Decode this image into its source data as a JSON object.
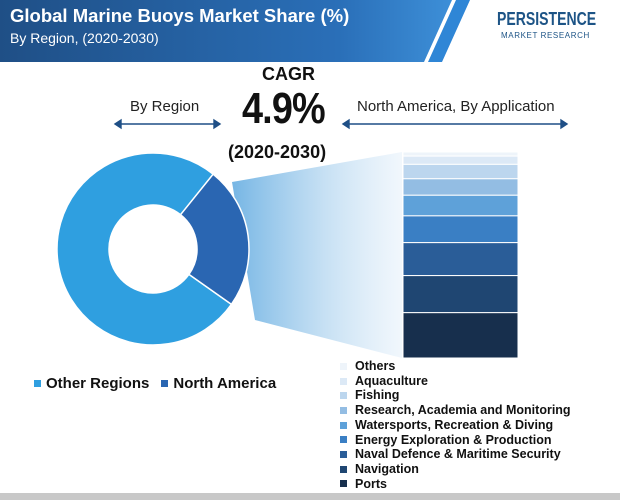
{
  "header": {
    "title": "Global Marine Buoys Market Share (%)",
    "subtitle": "By Region, (2020-2030)"
  },
  "logo": {
    "name": "PERSISTENCE",
    "tagline": "MARKET RESEARCH"
  },
  "cagr": {
    "label": "CAGR",
    "value": "4.9%",
    "period": "(2020-2030)"
  },
  "section_labels": {
    "left": "By Region",
    "right": "North America, By Application"
  },
  "colors": {
    "header_dark": "#1f4f86",
    "header_light": "#2f86d6",
    "other_regions": "#2f9fe0",
    "north_america": "#2a66b2",
    "funnel_light": "#e4f0fa",
    "funnel_mid": "#6fb2e3"
  },
  "chart_data": [
    {
      "type": "pie",
      "variant": "donut",
      "categories": [
        "Other Regions",
        "North America"
      ],
      "values": [
        76,
        24
      ],
      "colors": [
        "#2f9fe0",
        "#2a66b2"
      ],
      "legend": "bottom"
    },
    {
      "type": "bar",
      "variant": "stacked-100",
      "orientation": "vertical",
      "categories": [
        "Others",
        "Aquaculture",
        "Fishing",
        "Research, Academia and Monitoring",
        "Watersports, Recreation & Diving",
        "Energy Exploration & Production",
        "Naval Defence & Maritime Security",
        "Navigation",
        "Ports"
      ],
      "values": [
        2,
        4,
        7,
        8,
        10,
        13,
        16,
        18,
        22
      ],
      "colors": [
        "#eef4fa",
        "#dce9f6",
        "#bcd6ee",
        "#93bde3",
        "#5ea1d9",
        "#3a7fc4",
        "#2a5d98",
        "#1f4672",
        "#172f4d"
      ],
      "legend": "bottom"
    }
  ]
}
